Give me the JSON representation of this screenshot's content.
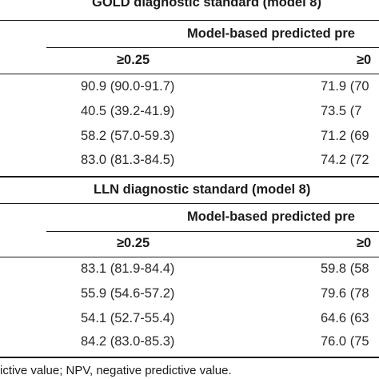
{
  "sections": [
    {
      "title": "GOLD diagnostic standard (model 8)",
      "subheader": "Model-based predicted pre",
      "columns": [
        "≥0.25",
        "≥0"
      ],
      "rows": [
        [
          "90.9 (90.0-91.7)",
          "71.9 (70"
        ],
        [
          "40.5 (39.2-41.9)",
          "73.5 (7"
        ],
        [
          "58.2 (57.0-59.3)",
          "71.2 (69"
        ],
        [
          "83.0 (81.3-84.5)",
          "74.2 (72"
        ]
      ]
    },
    {
      "title": "LLN diagnostic standard (model 8)",
      "subheader": "Model-based predicted pre",
      "columns": [
        "≥0.25",
        "≥0"
      ],
      "rows": [
        [
          "83.1 (81.9-84.4)",
          "59.8 (58"
        ],
        [
          "55.9 (54.6-57.2)",
          "79.6 (78"
        ],
        [
          "54.1 (52.7-55.4)",
          "64.6 (63"
        ],
        [
          "84.2 (83.0-85.3)",
          "76.0 (75"
        ]
      ]
    }
  ],
  "footnote": "ictive value; NPV, negative predictive value."
}
